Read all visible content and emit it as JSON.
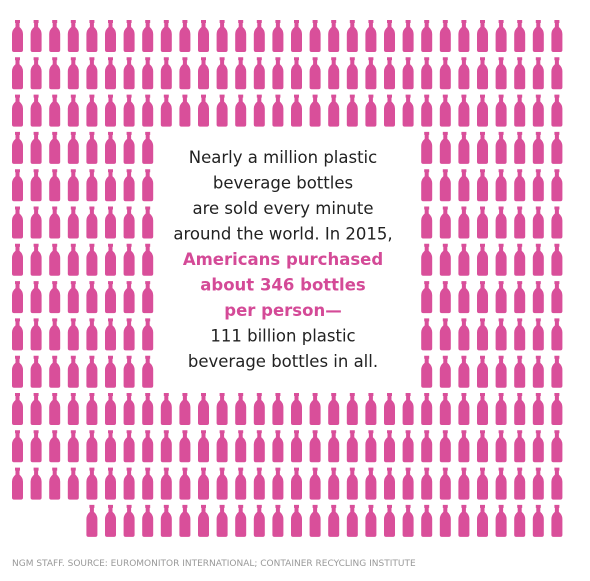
{
  "paragraph": [
    {
      "text": "Nearly a million plastic",
      "highlight": false
    },
    {
      "text": "beverage bottles",
      "highlight": false
    },
    {
      "text": "are sold every minute",
      "highlight": false
    },
    {
      "text": "around the world. In 2015,",
      "highlight": false
    },
    {
      "text": "Americans purchased",
      "highlight": true
    },
    {
      "text": "about 346 bottles",
      "highlight": true
    },
    {
      "text": "per person—",
      "highlight": true
    },
    {
      "text": "111 billion plastic",
      "highlight": false
    },
    {
      "text": "beverage bottles in all.",
      "highlight": false
    }
  ],
  "source": "NGM STAFF. SOURCE: EUROMONITOR INTERNATIONAL; CONTAINER RECYCLING INSTITUTE"
}
